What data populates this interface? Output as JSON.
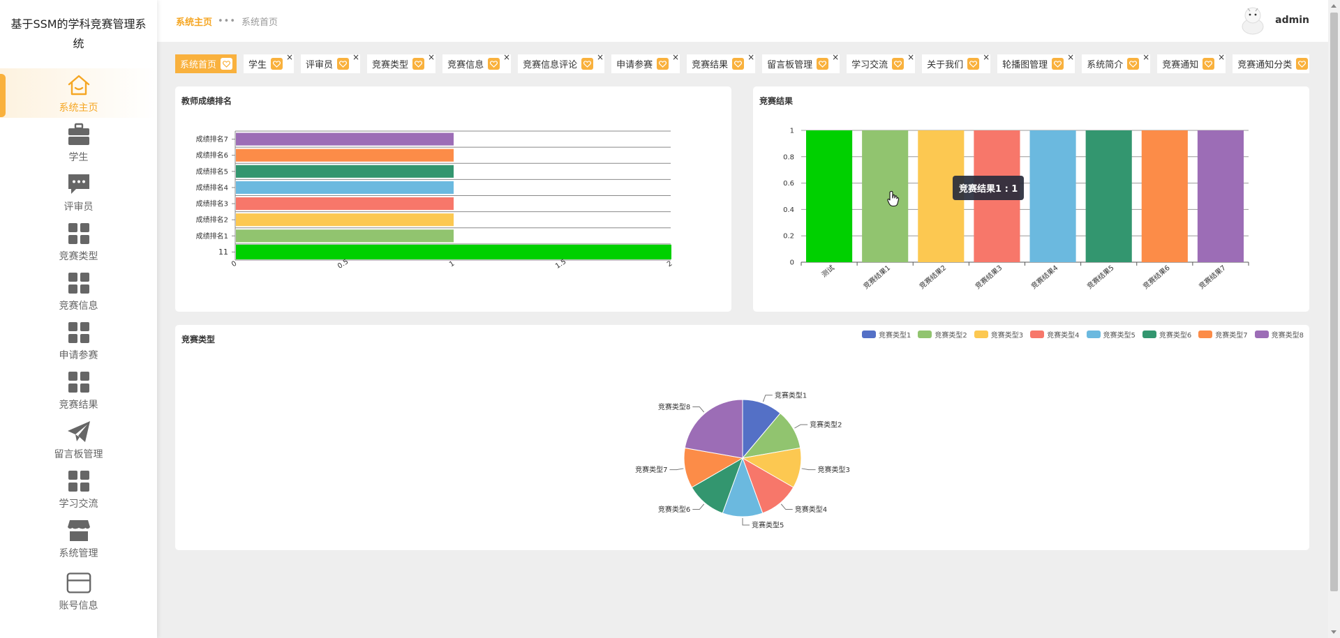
{
  "app": {
    "title": "基于SSM的学科竞赛管理系统"
  },
  "sidebar": {
    "items": [
      {
        "label": "系统主页",
        "icon": "home-icon",
        "active": true
      },
      {
        "label": "学生",
        "icon": "briefcase-icon"
      },
      {
        "label": "评审员",
        "icon": "chat-icon"
      },
      {
        "label": "竞赛类型",
        "icon": "grid-icon"
      },
      {
        "label": "竞赛信息",
        "icon": "grid-icon"
      },
      {
        "label": "申请参赛",
        "icon": "grid-icon"
      },
      {
        "label": "竞赛结果",
        "icon": "grid-icon"
      },
      {
        "label": "留言板管理",
        "icon": "paper-plane-icon"
      },
      {
        "label": "学习交流",
        "icon": "grid-icon"
      },
      {
        "label": "系统管理",
        "icon": "store-icon"
      },
      {
        "label": "账号信息",
        "icon": "card-icon"
      }
    ]
  },
  "header": {
    "breadcrumb_home": "系统主页",
    "breadcrumb_sep": "•••",
    "breadcrumb_current": "系统首页",
    "username": "admin"
  },
  "tabs": [
    {
      "label": "系统首页",
      "active": true,
      "closable": false
    },
    {
      "label": "学生",
      "closable": true
    },
    {
      "label": "评审员",
      "closable": true
    },
    {
      "label": "竞赛类型",
      "closable": true
    },
    {
      "label": "竞赛信息",
      "closable": true
    },
    {
      "label": "竞赛信息评论",
      "closable": true
    },
    {
      "label": "申请参赛",
      "closable": true
    },
    {
      "label": "竞赛结果",
      "closable": true
    },
    {
      "label": "留言板管理",
      "closable": true
    },
    {
      "label": "学习交流",
      "closable": true
    },
    {
      "label": "关于我们",
      "closable": true
    },
    {
      "label": "轮播图管理",
      "closable": true
    },
    {
      "label": "系统简介",
      "closable": true
    },
    {
      "label": "竞赛通知",
      "closable": true
    },
    {
      "label": "竞赛通知分类",
      "closable": true
    }
  ],
  "cards": {
    "rank_title": "教师成绩排名",
    "result_title": "竞赛结果",
    "type_title": "竞赛类型"
  },
  "tooltip": {
    "text": "竞赛结果1 : 1"
  },
  "colors": {
    "accent": "#f9b13d",
    "palette": [
      "#00d000",
      "#91c46f",
      "#fcc851",
      "#f7776a",
      "#6bb9df",
      "#33966f",
      "#fc8c48",
      "#9c6db6",
      "#5470c6"
    ]
  },
  "chart_data": [
    {
      "type": "bar",
      "orientation": "horizontal",
      "title": "教师成绩排名",
      "categories": [
        "11",
        "成绩排名1",
        "成绩排名2",
        "成绩排名3",
        "成绩排名4",
        "成绩排名5",
        "成绩排名6",
        "成绩排名7"
      ],
      "values": [
        2,
        1,
        1,
        1,
        1,
        1,
        1,
        1
      ],
      "xticks": [
        "0",
        "0.5",
        "1",
        "1.5",
        "2"
      ],
      "xlim": [
        0,
        2
      ]
    },
    {
      "type": "bar",
      "title": "竞赛结果",
      "categories": [
        "测试",
        "竞赛结果1",
        "竞赛结果2",
        "竞赛结果3",
        "竞赛结果4",
        "竞赛结果5",
        "竞赛结果6",
        "竞赛结果7"
      ],
      "values": [
        1,
        1,
        1,
        1,
        1,
        1,
        1,
        1
      ],
      "yticks": [
        "0",
        "0.2",
        "0.4",
        "0.6",
        "0.8",
        "1"
      ],
      "ylim": [
        0,
        1
      ]
    },
    {
      "type": "pie",
      "title": "竞赛类型",
      "labels": [
        "竞赛类型1",
        "竞赛类型2",
        "竞赛类型3",
        "竞赛类型4",
        "竞赛类型5",
        "竞赛类型6",
        "竞赛类型7",
        "竞赛类型8"
      ],
      "values": [
        1,
        1,
        1,
        1,
        1,
        1,
        1,
        2
      ],
      "colors": [
        "#5470c6",
        "#91c46f",
        "#fcc851",
        "#f7776a",
        "#6bb9df",
        "#33966f",
        "#fc8c48",
        "#9c6db6"
      ],
      "legend": "top-right"
    }
  ]
}
